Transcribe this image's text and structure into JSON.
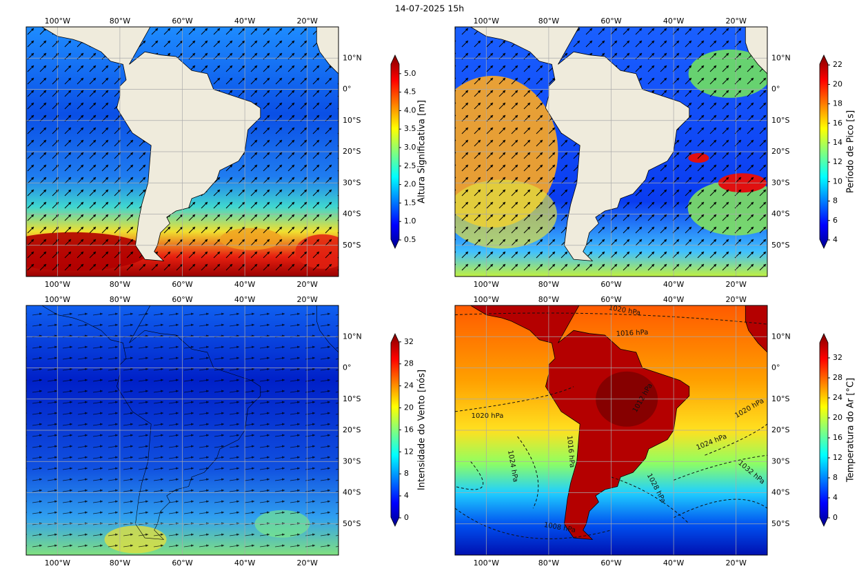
{
  "title": "14-07-2025 15h",
  "lon_labels": [
    "100°W",
    "80°W",
    "60°W",
    "40°W",
    "20°W"
  ],
  "lat_labels": [
    "10°N",
    "0°",
    "10°S",
    "20°S",
    "30°S",
    "40°S",
    "50°S"
  ],
  "panels": [
    {
      "colorbar_label": "Altura Significativa [m]",
      "colorbar_ticks": [
        "0.5",
        "1.0",
        "1.5",
        "2.0",
        "2.5",
        "3.0",
        "3.5",
        "4.0",
        "4.5",
        "5.0"
      ]
    },
    {
      "colorbar_label": "Período de Pico [s]",
      "colorbar_ticks": [
        "4",
        "6",
        "8",
        "10",
        "12",
        "14",
        "16",
        "18",
        "20",
        "22"
      ]
    },
    {
      "colorbar_label": "Intensidade do Vento [nós]",
      "colorbar_ticks": [
        "0",
        "4",
        "8",
        "12",
        "16",
        "20",
        "24",
        "28",
        "32"
      ]
    },
    {
      "colorbar_label": "Temperatura do Ar [°C]",
      "colorbar_ticks": [
        "0",
        "4",
        "8",
        "12",
        "16",
        "20",
        "24",
        "28",
        "32"
      ],
      "contour_labels": [
        "1020 hPa",
        "1016 hPa",
        "1020 hPa",
        "1020 hPa",
        "1024 hPa",
        "1032 hPa",
        "1024 hPa",
        "1016 hPa",
        "1028 hPa",
        "1012 hPa",
        "1008 hPa"
      ]
    }
  ]
}
